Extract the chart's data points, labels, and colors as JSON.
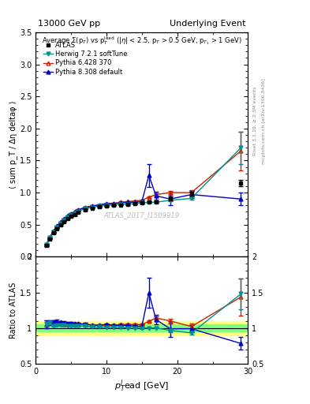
{
  "title_left": "13000 GeV pp",
  "title_right": "Underlying Event",
  "right_label_top": "Rivet 3.1.10, ≥ 2.3M events",
  "right_label_bottom": "mcplots.cern.ch [arXiv:1306.3436]",
  "annotation": "ATLAS_2017_I1509919",
  "ylabel_main": "⟨ sum p_T / Δη deltaφ ⟩",
  "ylabel_ratio": "Ratio to ATLAS",
  "xlabel": "p$_T^{l}$ead [GeV]",
  "ylim_main": [
    0,
    3.5
  ],
  "ylim_ratio": [
    0.5,
    2.0
  ],
  "xlim": [
    0,
    30
  ],
  "atlas_x": [
    1.5,
    2.0,
    2.5,
    3.0,
    3.5,
    4.0,
    4.5,
    5.0,
    5.5,
    6.0,
    7.0,
    8.0,
    9.0,
    10.0,
    11.0,
    12.0,
    13.0,
    14.0,
    15.0,
    16.0,
    17.0,
    19.0,
    22.0,
    29.0
  ],
  "atlas_y": [
    0.18,
    0.28,
    0.37,
    0.44,
    0.5,
    0.55,
    0.6,
    0.63,
    0.66,
    0.69,
    0.73,
    0.76,
    0.78,
    0.79,
    0.8,
    0.81,
    0.82,
    0.83,
    0.84,
    0.85,
    0.85,
    0.91,
    0.98,
    1.15
  ],
  "atlas_yerr": [
    0.01,
    0.01,
    0.01,
    0.01,
    0.01,
    0.01,
    0.01,
    0.01,
    0.01,
    0.01,
    0.01,
    0.01,
    0.01,
    0.01,
    0.01,
    0.01,
    0.01,
    0.01,
    0.01,
    0.01,
    0.01,
    0.03,
    0.03,
    0.05
  ],
  "atlas_color": "black",
  "atlas_marker": "s",
  "herwig_x": [
    1.5,
    2.0,
    2.5,
    3.0,
    3.5,
    4.0,
    4.5,
    5.0,
    5.5,
    6.0,
    7.0,
    8.0,
    9.0,
    10.0,
    11.0,
    12.0,
    13.0,
    14.0,
    15.0,
    16.0,
    17.0,
    19.0,
    22.0,
    29.0
  ],
  "herwig_y": [
    0.19,
    0.3,
    0.38,
    0.46,
    0.52,
    0.57,
    0.62,
    0.65,
    0.68,
    0.71,
    0.75,
    0.77,
    0.79,
    0.8,
    0.81,
    0.82,
    0.82,
    0.83,
    0.84,
    0.85,
    0.85,
    0.88,
    0.91,
    1.7
  ],
  "herwig_yerr": [
    0.005,
    0.005,
    0.005,
    0.005,
    0.005,
    0.005,
    0.005,
    0.005,
    0.005,
    0.005,
    0.005,
    0.005,
    0.005,
    0.005,
    0.005,
    0.005,
    0.005,
    0.005,
    0.005,
    0.005,
    0.005,
    0.02,
    0.02,
    0.25
  ],
  "herwig_color": "#009090",
  "herwig_marker": "v",
  "pythia6_x": [
    1.5,
    2.0,
    2.5,
    3.0,
    3.5,
    4.0,
    4.5,
    5.0,
    5.5,
    6.0,
    7.0,
    8.0,
    9.0,
    10.0,
    11.0,
    12.0,
    13.0,
    14.0,
    15.0,
    16.0,
    17.0,
    19.0,
    22.0,
    29.0
  ],
  "pythia6_y": [
    0.19,
    0.3,
    0.4,
    0.47,
    0.53,
    0.58,
    0.63,
    0.67,
    0.7,
    0.73,
    0.77,
    0.79,
    0.81,
    0.82,
    0.83,
    0.85,
    0.86,
    0.87,
    0.88,
    0.93,
    0.97,
    1.0,
    1.0,
    1.65
  ],
  "pythia6_yerr": [
    0.01,
    0.01,
    0.01,
    0.01,
    0.01,
    0.01,
    0.01,
    0.01,
    0.01,
    0.01,
    0.01,
    0.01,
    0.01,
    0.01,
    0.01,
    0.01,
    0.01,
    0.01,
    0.01,
    0.01,
    0.02,
    0.03,
    0.04,
    0.3
  ],
  "pythia6_color": "#cc2200",
  "pythia6_marker": "^",
  "pythia8_x": [
    1.5,
    2.0,
    2.5,
    3.0,
    3.5,
    4.0,
    4.5,
    5.0,
    5.5,
    6.0,
    7.0,
    8.0,
    9.0,
    10.0,
    11.0,
    12.0,
    13.0,
    14.0,
    15.0,
    16.0,
    17.0,
    19.0,
    22.0,
    29.0
  ],
  "pythia8_y": [
    0.19,
    0.3,
    0.4,
    0.48,
    0.54,
    0.59,
    0.64,
    0.67,
    0.7,
    0.73,
    0.77,
    0.79,
    0.81,
    0.83,
    0.83,
    0.84,
    0.85,
    0.85,
    0.86,
    1.27,
    0.95,
    0.9,
    0.97,
    0.9
  ],
  "pythia8_yerr": [
    0.01,
    0.01,
    0.01,
    0.01,
    0.01,
    0.01,
    0.01,
    0.01,
    0.01,
    0.01,
    0.01,
    0.01,
    0.01,
    0.01,
    0.01,
    0.01,
    0.01,
    0.01,
    0.02,
    0.18,
    0.06,
    0.1,
    0.05,
    0.1
  ],
  "pythia8_color": "#0000cc",
  "pythia8_marker": "^",
  "band_color_yellow": "#ffff80",
  "band_color_green": "#80ff80",
  "band_inner": 0.05,
  "band_outer": 0.1,
  "legend_labels": [
    "ATLAS",
    "Herwig 7.2.1 softTune",
    "Pythia 6.428 370",
    "Pythia 8.308 default"
  ]
}
